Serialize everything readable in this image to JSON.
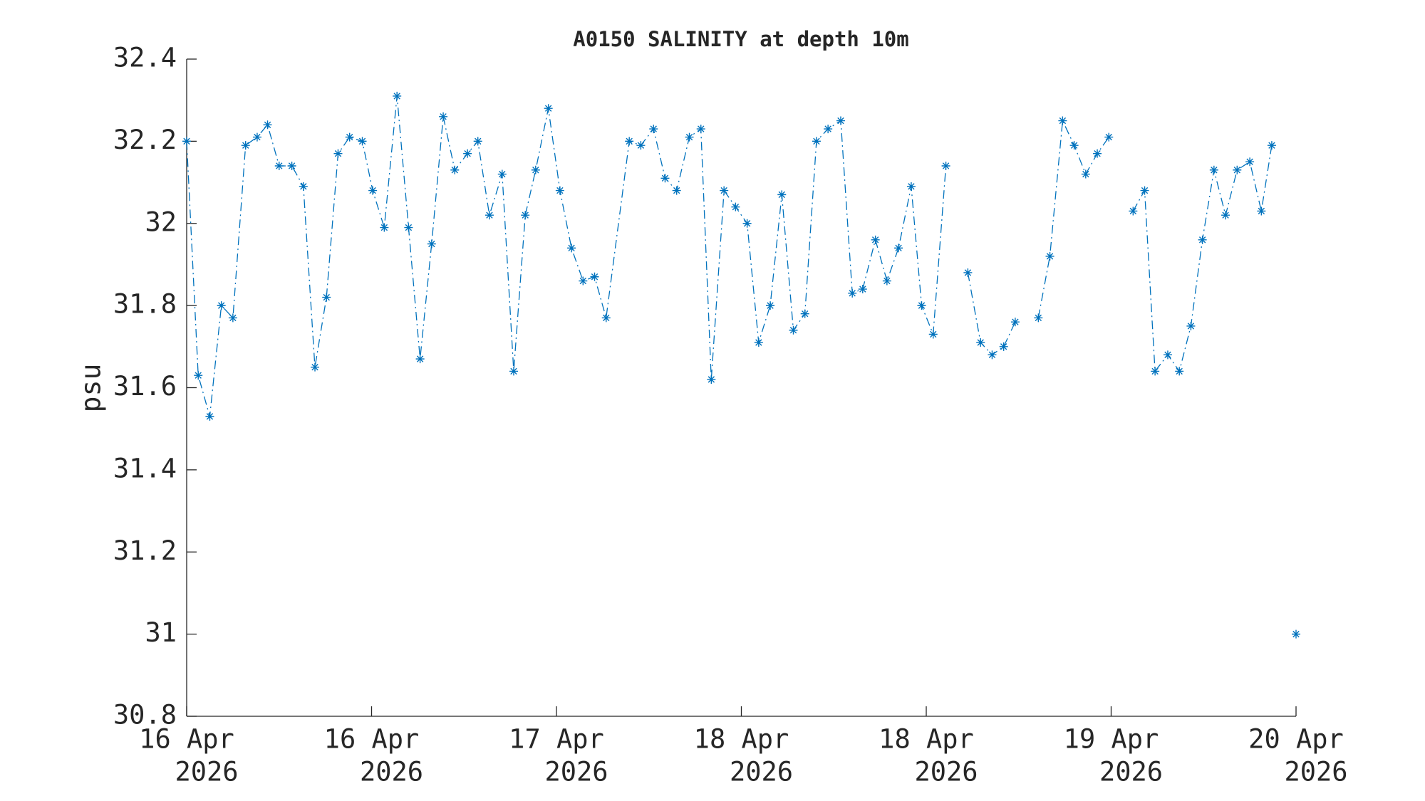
{
  "chart_data": {
    "type": "line",
    "title": "A0150 SALINITY at depth 10m",
    "y_label": "psu",
    "color": "#0072bd",
    "marker": "asterisk",
    "line_style": "dash-dot",
    "x": [
      0,
      1.0,
      2.0,
      3.0,
      4.0,
      5.1,
      6.1,
      7.0,
      8.0,
      9.1,
      10.1,
      11.1,
      12.1,
      13.1,
      14.1,
      15.2,
      16.1,
      17.1,
      18.2,
      19.2,
      20.2,
      21.2,
      22.2,
      23.2,
      24.3,
      25.2,
      26.2,
      27.3,
      28.3,
      29.3,
      30.2,
      31.3,
      32.3,
      33.3,
      34.3,
      35.3,
      36.3,
      38.3,
      39.3,
      40.4,
      41.4,
      42.4,
      43.5,
      44.5,
      45.4,
      46.5,
      47.5,
      48.5,
      49.5,
      50.5,
      51.5,
      52.5,
      53.5,
      54.5,
      55.5,
      56.6,
      57.6,
      58.5,
      59.6,
      60.6,
      61.6,
      62.7,
      63.6,
      64.6,
      65.7,
      66.7,
      67.6,
      68.7,
      69.7,
      70.7,
      71.7,
      72.7,
      73.7,
      74.7,
      75.8,
      76.8,
      77.8,
      78.8,
      79.8,
      80.8,
      81.9,
      82.9,
      83.8,
      84.9,
      85.9,
      86.9,
      87.9,
      88.9,
      89.9,
      90.9,
      92.0,
      93.0,
      93.9,
      95.0,
      96
    ],
    "values": [
      32.2,
      31.63,
      31.53,
      31.8,
      31.77,
      32.19,
      32.21,
      32.24,
      32.14,
      32.14,
      32.09,
      31.65,
      31.82,
      32.17,
      32.21,
      32.2,
      32.08,
      31.99,
      32.31,
      31.99,
      31.67,
      31.95,
      32.26,
      32.13,
      32.17,
      32.2,
      32.02,
      32.12,
      31.64,
      32.02,
      32.13,
      32.28,
      32.08,
      31.94,
      31.86,
      31.87,
      31.77,
      32.2,
      32.19,
      32.23,
      32.11,
      32.08,
      32.21,
      32.23,
      31.62,
      32.08,
      32.04,
      32.0,
      31.71,
      31.8,
      32.07,
      31.74,
      31.78,
      32.2,
      32.23,
      32.25,
      31.83,
      31.84,
      31.96,
      31.86,
      31.94,
      32.09,
      31.8,
      31.73,
      32.14,
      null,
      31.88,
      31.71,
      31.68,
      31.7,
      31.76,
      null,
      31.77,
      31.92,
      32.25,
      32.19,
      32.12,
      32.17,
      32.21,
      null,
      32.03,
      32.08,
      31.64,
      31.68,
      31.64,
      31.75,
      31.96,
      32.13,
      32.02,
      32.13,
      32.15,
      32.03,
      32.19,
      null,
      31.0
    ],
    "xlim": [
      0,
      96
    ],
    "xticks": [
      {
        "value": 0,
        "label": [
          "16 Apr",
          "2026"
        ]
      },
      {
        "value": 16,
        "label": [
          "16 Apr",
          "2026"
        ]
      },
      {
        "value": 32,
        "label": [
          "17 Apr",
          "2026"
        ]
      },
      {
        "value": 48,
        "label": [
          "18 Apr",
          "2026"
        ]
      },
      {
        "value": 64,
        "label": [
          "18 Apr",
          "2026"
        ]
      },
      {
        "value": 80,
        "label": [
          "19 Apr",
          "2026"
        ]
      },
      {
        "value": 96,
        "label": [
          "20 Apr",
          "2026"
        ]
      }
    ],
    "ylim": [
      30.8,
      32.4
    ],
    "yticks": [
      30.8,
      31,
      31.2,
      31.4,
      31.6,
      31.8,
      32,
      32.2,
      32.4
    ],
    "grid": false
  }
}
